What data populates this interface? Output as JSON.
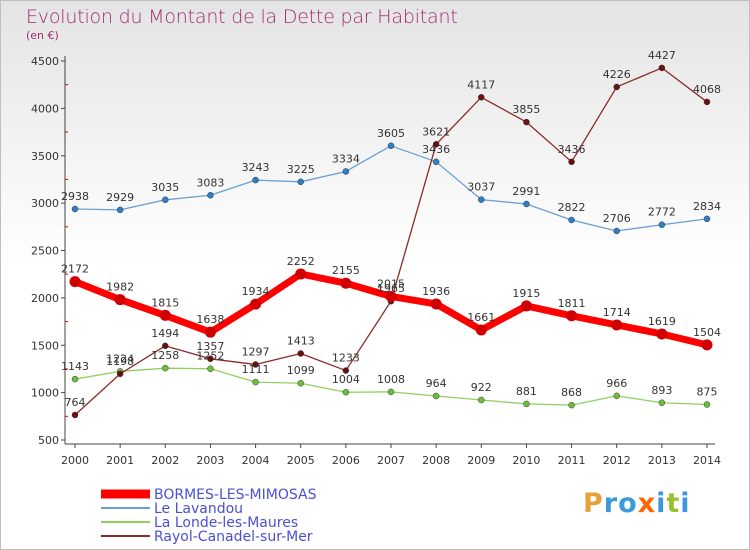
{
  "header": {
    "title": "Evolution du Montant de la Dette par Habitant",
    "unit": "(en €)"
  },
  "logo": {
    "text": "Proxiti",
    "colors": [
      "#e8a13a",
      "#3a9ad9",
      "#3a9ad9",
      "#ff6600",
      "#3a9ad9",
      "#9ac031",
      "#3a9ad9"
    ]
  },
  "chart_data": {
    "type": "line",
    "title": "Evolution du Montant de la Dette par Habitant",
    "ylabel": "(en €)",
    "x": [
      "2000",
      "2001",
      "2002",
      "2003",
      "2004",
      "2005",
      "2006",
      "2007",
      "2008",
      "2009",
      "2010",
      "2011",
      "2012",
      "2013",
      "2014"
    ],
    "yticks": [
      "500",
      "1000",
      "1500",
      "2000",
      "2500",
      "3000",
      "3500",
      "4000",
      "4500"
    ],
    "ylim": [
      500,
      4500
    ],
    "grid": false,
    "legend": "bottom-left",
    "series": [
      {
        "name": "BORMES-LES-MIMOSAS",
        "color": "#ff0000",
        "marker": "#d10000",
        "width": 7,
        "values": [
          2172,
          1982,
          1815,
          1638,
          1934,
          2252,
          2155,
          2015,
          1936,
          1661,
          1915,
          1811,
          1714,
          1619,
          1504
        ],
        "labels": [
          "2172",
          "1982",
          "1815",
          "1638",
          "1934",
          "2252",
          "2155",
          "2015",
          "1936",
          "1661",
          "1915",
          "1811",
          "1714",
          "1619",
          "1504"
        ]
      },
      {
        "name": "Le Lavandou",
        "color": "#6a9fd4",
        "marker": "#2f7fc7",
        "width": 1.3,
        "values": [
          2938,
          2929,
          3035,
          3083,
          3243,
          3225,
          3334,
          3605,
          3436,
          3037,
          2991,
          2822,
          2706,
          2772,
          2834
        ],
        "labels": [
          "2938",
          "2929",
          "3035",
          "3083",
          "3243",
          "3225",
          "3334",
          "3605",
          "3436",
          "3037",
          "2991",
          "2822",
          "2706",
          "2772",
          "2834"
        ]
      },
      {
        "name": "La Londe-les-Maures",
        "color": "#90d060",
        "marker": "#6cbf3a",
        "width": 1.3,
        "values": [
          1143,
          1224,
          1258,
          1252,
          1111,
          1099,
          1004,
          1008,
          964,
          922,
          881,
          868,
          966,
          893,
          875
        ],
        "labels": [
          "1143",
          "1224",
          "1258",
          "1252",
          "1111",
          "1099",
          "1004",
          "1008",
          "964",
          "922",
          "881",
          "868",
          "966",
          "893",
          "875"
        ]
      },
      {
        "name": "Rayol-Canadel-sur-Mer",
        "color": "#8b2a2a",
        "marker": "#6b1010",
        "width": 1.3,
        "values": [
          764,
          1198,
          1494,
          1357,
          1297,
          1413,
          1233,
          1965,
          3621,
          4117,
          3855,
          3436,
          4226,
          4427,
          4068
        ],
        "labels": [
          "764",
          "1198",
          "1494",
          "1357",
          "1297",
          "1413",
          "1233",
          "1965",
          "3621",
          "4117",
          "3855",
          "3436",
          "4226",
          "4427",
          "4068"
        ]
      }
    ]
  }
}
